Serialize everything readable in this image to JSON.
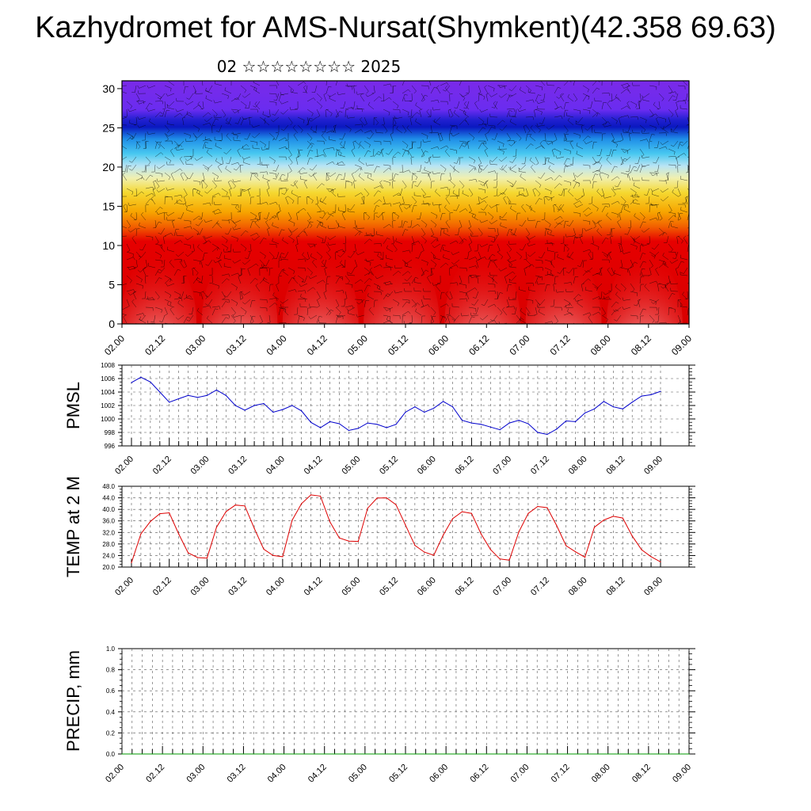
{
  "header": {
    "title": "Kazhydromet for AMS-Nursat(Shymkent)(42.358 69.63)",
    "subtitle": "02 ☆☆☆☆☆☆☆☆ 2025"
  },
  "colors": {
    "pmsl_line": "#0000cc",
    "temp_line": "#dd0000",
    "precip_line": "#009900",
    "cross_section_top": "#7b2be8",
    "cross_section_mid_blue": "#0a20c8",
    "cross_section_cyan": "#2fb4f0",
    "cross_section_yellow": "#f5e03a",
    "cross_section_orange": "#f5a000",
    "cross_section_red": "#e00000",
    "cross_section_pink": "#f8b0b0"
  },
  "chart_data": [
    {
      "type": "heatmap",
      "name": "cross-section",
      "x_ticks": [
        "02.00",
        "02.12",
        "03.00",
        "03.12",
        "04.00",
        "04.12",
        "05.00",
        "05.12",
        "06.00",
        "06.12",
        "07.00",
        "07.12",
        "08.00",
        "08.12",
        "09.00"
      ],
      "y_ticks": [
        "0",
        "5",
        "10",
        "15",
        "20",
        "25",
        "30"
      ],
      "ylim": [
        0,
        31
      ],
      "overlay": "wind barbs"
    },
    {
      "type": "line",
      "name": "pmsl",
      "ylabel": "PMSL",
      "ylim": [
        996,
        1008
      ],
      "y_ticks": [
        "996",
        "998",
        "1000",
        "1002",
        "1004",
        "1006",
        "1008"
      ],
      "x_ticks": [
        "02.00",
        "02.12",
        "03.00",
        "03.12",
        "04.00",
        "04.12",
        "05.00",
        "05.12",
        "06.00",
        "06.12",
        "07.00",
        "07.12",
        "08.00",
        "08.12",
        "09.00"
      ],
      "values": [
        1005.4,
        1006.2,
        1005.5,
        1004.0,
        1002.5,
        1003.0,
        1003.5,
        1003.2,
        1003.5,
        1004.3,
        1003.5,
        1002.0,
        1001.3,
        1002.0,
        1002.3,
        1001.0,
        1001.4,
        1002.0,
        1001.2,
        999.5,
        998.7,
        999.6,
        999.3,
        998.3,
        998.6,
        999.4,
        999.2,
        998.7,
        999.2,
        1001.0,
        1001.8,
        1001.0,
        1001.6,
        1002.6,
        1001.8,
        999.8,
        999.4,
        999.2,
        998.8,
        998.4,
        999.4,
        999.8,
        999.3,
        998.0,
        997.7,
        998.5,
        999.7,
        999.6,
        1000.9,
        1001.5,
        1002.6,
        1001.8,
        1001.5,
        1002.5,
        1003.4,
        1003.6,
        1004.1
      ],
      "grid": true
    },
    {
      "type": "line",
      "name": "temp",
      "ylabel": "TEMP at 2 M",
      "ylim": [
        20,
        48
      ],
      "y_ticks": [
        "20.0",
        "24.0",
        "28.0",
        "32.0",
        "36.0",
        "40.0",
        "44.0",
        "48.0"
      ],
      "x_ticks": [
        "02.00",
        "02.12",
        "03.00",
        "03.12",
        "04.00",
        "04.12",
        "05.00",
        "05.12",
        "06.00",
        "06.12",
        "07.00",
        "07.12",
        "08.00",
        "08.12",
        "09.00"
      ],
      "values": [
        21.5,
        31.5,
        35.8,
        38.5,
        38.8,
        31.5,
        24.9,
        23.3,
        23.1,
        33.8,
        39.2,
        41.5,
        41.2,
        33.4,
        26.2,
        24.0,
        23.6,
        36.2,
        42.0,
        45.0,
        44.6,
        35.7,
        30.1,
        29.0,
        28.9,
        40.4,
        43.9,
        44.0,
        41.6,
        34.6,
        27.5,
        25.2,
        24.1,
        31.1,
        36.8,
        39.2,
        38.6,
        31.5,
        26.1,
        22.8,
        22.4,
        32.2,
        38.6,
        41.0,
        40.6,
        34.4,
        27.4,
        25.3,
        23.4,
        33.8,
        36.3,
        37.6,
        37.0,
        30.8,
        26.0,
        23.6,
        21.8
      ],
      "grid": true
    },
    {
      "type": "line",
      "name": "precip",
      "ylabel": "PRECIP, mm",
      "ylim": [
        0,
        1.0
      ],
      "y_ticks": [
        "0.0",
        "0.2",
        "0.4",
        "0.6",
        "0.8",
        "1.0"
      ],
      "x_ticks": [
        "02.00",
        "02.12",
        "03.00",
        "03.12",
        "04.00",
        "04.12",
        "05.00",
        "05.12",
        "06.00",
        "06.12",
        "07.00",
        "07.12",
        "08.00",
        "08.12",
        "09.00"
      ],
      "values": [
        0,
        0,
        0,
        0,
        0,
        0,
        0,
        0,
        0,
        0,
        0,
        0,
        0,
        0,
        0,
        0,
        0,
        0,
        0,
        0,
        0,
        0,
        0,
        0,
        0,
        0,
        0,
        0,
        0,
        0,
        0,
        0,
        0,
        0,
        0,
        0,
        0,
        0,
        0,
        0,
        0,
        0,
        0,
        0,
        0,
        0,
        0,
        0,
        0,
        0,
        0,
        0,
        0,
        0,
        0,
        0,
        0
      ],
      "grid": true
    }
  ]
}
